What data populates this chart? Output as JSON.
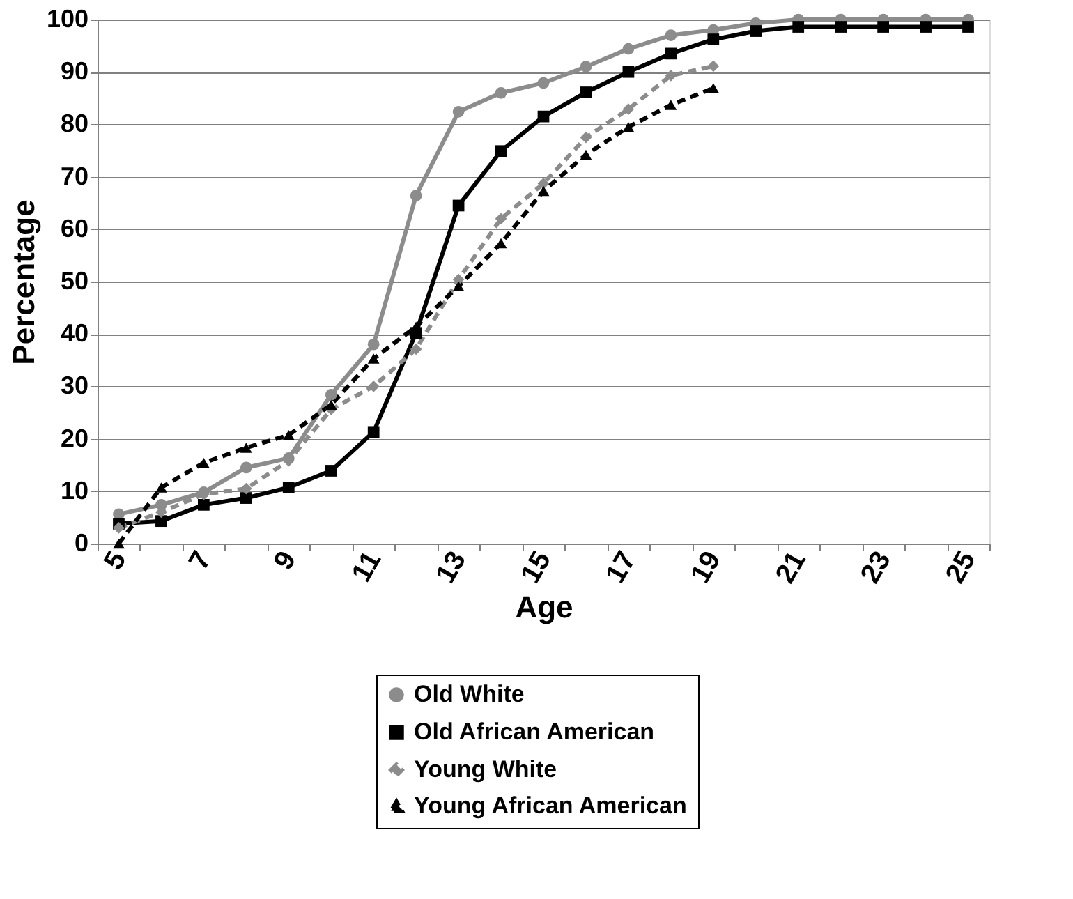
{
  "chart_data": {
    "type": "line",
    "xlabel": "Age",
    "ylabel": "Percentage",
    "categories": [
      "5",
      null,
      "7",
      null,
      "9",
      null,
      "11",
      null,
      "13",
      null,
      "15",
      null,
      "17",
      null,
      "19",
      null,
      "21",
      null,
      "23",
      null,
      "25"
    ],
    "ylim": [
      0,
      100
    ],
    "yticks": [
      0,
      10,
      20,
      30,
      40,
      50,
      60,
      70,
      80,
      90,
      100
    ],
    "grid": "y",
    "legend": "bottom",
    "series": [
      {
        "name": "Old White",
        "color": "#8c8c8c",
        "marker": "circle",
        "line_style": "solid",
        "values": [
          5.6,
          7.4,
          9.8,
          14.5,
          16.3,
          28.4,
          38,
          66.4,
          82.4,
          86,
          87.9,
          91,
          94.4,
          97,
          98,
          99.3,
          100,
          100,
          100,
          100,
          100
        ]
      },
      {
        "name": "Old African American",
        "color": "#000000",
        "marker": "square",
        "line_style": "solid",
        "values": [
          3.8,
          4.3,
          7.4,
          8.7,
          10.7,
          13.9,
          21.3,
          40.2,
          64.5,
          74.9,
          81.5,
          86.1,
          90,
          93.5,
          96.2,
          97.8,
          98.6,
          98.6,
          98.6,
          98.6,
          98.6
        ]
      },
      {
        "name": "Young White",
        "color": "#8c8c8c",
        "marker": "diamond",
        "line_style": "dashed",
        "values": [
          3,
          6,
          9.4,
          10.5,
          15.8,
          25.6,
          30,
          37.1,
          50.4,
          62,
          68.7,
          77.5,
          82.9,
          89.3,
          91.1,
          null,
          null,
          null,
          null,
          null,
          null
        ]
      },
      {
        "name": "Young African American",
        "color": "#000000",
        "marker": "triangle",
        "line_style": "dashed",
        "values": [
          0,
          10.7,
          15.4,
          18.3,
          20.7,
          26.5,
          35.3,
          41.4,
          49.1,
          57.3,
          67.3,
          74.2,
          79.5,
          83.7,
          86.9,
          null,
          null,
          null,
          null,
          null,
          null
        ]
      }
    ]
  }
}
